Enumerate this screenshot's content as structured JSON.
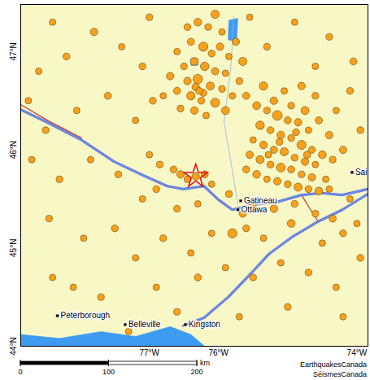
{
  "chart_data": {
    "type": "map",
    "xlim": [
      -78.86,
      -73.84
    ],
    "ylim": [
      44.0,
      47.48
    ],
    "xticks": [
      {
        "value": -77,
        "label": "77°W"
      },
      {
        "value": -76,
        "label": "76°W"
      },
      {
        "value": -74,
        "label": "74°W"
      }
    ],
    "yticks": [
      {
        "value": 44,
        "label": "44°N"
      },
      {
        "value": 45,
        "label": "45°N"
      },
      {
        "value": 46,
        "label": "46°N"
      },
      {
        "value": 47,
        "label": "47°N"
      }
    ],
    "grid": true,
    "color": "#f9a11b",
    "earthquakes": [
      {
        "lon": -76.3,
        "lat": 47.3,
        "magnitude": 2.1
      },
      {
        "lon": -76.15,
        "lat": 47.25,
        "magnitude": 1.6
      },
      {
        "lon": -76.05,
        "lat": 47.38,
        "magnitude": 2.4
      },
      {
        "lon": -75.95,
        "lat": 47.2,
        "magnitude": 1.5
      },
      {
        "lon": -76.4,
        "lat": 47.1,
        "magnitude": 1.8
      },
      {
        "lon": -76.22,
        "lat": 47.05,
        "magnitude": 3.0
      },
      {
        "lon": -76.1,
        "lat": 46.98,
        "magnitude": 1.7
      },
      {
        "lon": -75.98,
        "lat": 47.05,
        "magnitude": 2.0
      },
      {
        "lon": -75.85,
        "lat": 46.95,
        "magnitude": 1.5
      },
      {
        "lon": -76.35,
        "lat": 46.9,
        "magnitude": 2.2
      },
      {
        "lon": -76.5,
        "lat": 46.85,
        "magnitude": 1.6
      },
      {
        "lon": -76.2,
        "lat": 46.85,
        "magnitude": 2.6
      },
      {
        "lon": -76.05,
        "lat": 46.8,
        "magnitude": 1.9
      },
      {
        "lon": -75.9,
        "lat": 46.78,
        "magnitude": 1.5
      },
      {
        "lon": -76.45,
        "lat": 46.7,
        "magnitude": 2.0
      },
      {
        "lon": -76.3,
        "lat": 46.72,
        "magnitude": 3.2
      },
      {
        "lon": -76.12,
        "lat": 46.65,
        "magnitude": 2.3
      },
      {
        "lon": -75.95,
        "lat": 46.62,
        "magnitude": 1.6
      },
      {
        "lon": -76.6,
        "lat": 46.6,
        "magnitude": 1.8
      },
      {
        "lon": -76.4,
        "lat": 46.55,
        "magnitude": 2.5
      },
      {
        "lon": -76.25,
        "lat": 46.5,
        "magnitude": 1.7
      },
      {
        "lon": -76.05,
        "lat": 46.48,
        "magnitude": 2.8
      },
      {
        "lon": -75.8,
        "lat": 46.55,
        "magnitude": 1.5
      },
      {
        "lon": -76.55,
        "lat": 46.42,
        "magnitude": 1.6
      },
      {
        "lon": -76.35,
        "lat": 46.4,
        "magnitude": 2.0
      },
      {
        "lon": -76.18,
        "lat": 46.35,
        "magnitude": 1.5
      },
      {
        "lon": -75.9,
        "lat": 46.4,
        "magnitude": 2.2
      },
      {
        "lon": -75.7,
        "lat": 46.7,
        "magnitude": 1.6
      },
      {
        "lon": -75.75,
        "lat": 47.1,
        "magnitude": 1.9
      },
      {
        "lon": -76.6,
        "lat": 47.0,
        "magnitude": 1.5
      },
      {
        "lon": -76.7,
        "lat": 46.75,
        "magnitude": 2.0
      },
      {
        "lon": -76.45,
        "lat": 47.25,
        "magnitude": 1.7
      },
      {
        "lon": -75.65,
        "lat": 46.9,
        "magnitude": 2.4
      },
      {
        "lon": -76.8,
        "lat": 46.55,
        "magnitude": 1.5
      },
      {
        "lon": -76.28,
        "lat": 46.6,
        "magnitude": 1.6
      },
      {
        "lon": -76.33,
        "lat": 46.64,
        "magnitude": 2.0
      },
      {
        "lon": -76.22,
        "lat": 46.58,
        "magnitude": 1.8
      },
      {
        "lon": -75.45,
        "lat": 46.45,
        "magnitude": 2.2
      },
      {
        "lon": -75.3,
        "lat": 46.4,
        "magnitude": 1.6
      },
      {
        "lon": -75.15,
        "lat": 46.35,
        "magnitude": 3.4
      },
      {
        "lon": -75.0,
        "lat": 46.3,
        "magnitude": 1.8
      },
      {
        "lon": -74.85,
        "lat": 46.28,
        "magnitude": 2.0
      },
      {
        "lon": -74.7,
        "lat": 46.2,
        "magnitude": 1.5
      },
      {
        "lon": -75.4,
        "lat": 46.25,
        "magnitude": 2.6
      },
      {
        "lon": -75.25,
        "lat": 46.2,
        "magnitude": 1.7
      },
      {
        "lon": -75.1,
        "lat": 46.15,
        "magnitude": 2.1
      },
      {
        "lon": -74.95,
        "lat": 46.12,
        "magnitude": 1.6
      },
      {
        "lon": -74.8,
        "lat": 46.05,
        "magnitude": 2.9
      },
      {
        "lon": -74.65,
        "lat": 46.0,
        "magnitude": 1.7
      },
      {
        "lon": -74.5,
        "lat": 45.95,
        "magnitude": 2.2
      },
      {
        "lon": -75.5,
        "lat": 46.1,
        "magnitude": 1.5
      },
      {
        "lon": -75.35,
        "lat": 46.05,
        "magnitude": 2.0
      },
      {
        "lon": -75.2,
        "lat": 46.0,
        "magnitude": 1.8
      },
      {
        "lon": -75.05,
        "lat": 45.98,
        "magnitude": 2.4
      },
      {
        "lon": -74.9,
        "lat": 45.92,
        "magnitude": 1.6
      },
      {
        "lon": -74.75,
        "lat": 45.88,
        "magnitude": 2.0
      },
      {
        "lon": -74.6,
        "lat": 45.85,
        "magnitude": 1.5
      },
      {
        "lon": -75.55,
        "lat": 45.95,
        "magnitude": 1.9
      },
      {
        "lon": -75.4,
        "lat": 45.9,
        "magnitude": 2.3
      },
      {
        "lon": -75.25,
        "lat": 45.85,
        "magnitude": 1.6
      },
      {
        "lon": -75.1,
        "lat": 45.82,
        "magnitude": 2.7
      },
      {
        "lon": -74.95,
        "lat": 45.8,
        "magnitude": 1.8
      },
      {
        "lon": -74.8,
        "lat": 45.75,
        "magnitude": 1.6
      },
      {
        "lon": -74.65,
        "lat": 45.72,
        "magnitude": 2.0
      },
      {
        "lon": -74.45,
        "lat": 45.7,
        "magnitude": 1.5
      },
      {
        "lon": -75.6,
        "lat": 45.8,
        "magnitude": 1.7
      },
      {
        "lon": -75.45,
        "lat": 45.75,
        "magnitude": 2.1
      },
      {
        "lon": -75.3,
        "lat": 45.7,
        "magnitude": 1.5
      },
      {
        "lon": -75.15,
        "lat": 45.68,
        "magnitude": 2.0
      },
      {
        "lon": -75.0,
        "lat": 45.65,
        "magnitude": 1.6
      },
      {
        "lon": -74.85,
        "lat": 45.62,
        "magnitude": 2.4
      },
      {
        "lon": -74.7,
        "lat": 45.6,
        "magnitude": 1.7
      },
      {
        "lon": -74.55,
        "lat": 45.58,
        "magnitude": 2.2
      },
      {
        "lon": -74.4,
        "lat": 45.6,
        "magnitude": 1.5
      },
      {
        "lon": -75.2,
        "lat": 46.5,
        "magnitude": 2.0
      },
      {
        "lon": -74.95,
        "lat": 46.45,
        "magnitude": 1.6
      },
      {
        "lon": -74.75,
        "lat": 46.4,
        "magnitude": 2.3
      },
      {
        "lon": -74.55,
        "lat": 46.3,
        "magnitude": 1.8
      },
      {
        "lon": -74.4,
        "lat": 46.15,
        "magnitude": 2.0
      },
      {
        "lon": -74.35,
        "lat": 45.9,
        "magnitude": 1.6
      },
      {
        "lon": -75.6,
        "lat": 46.55,
        "magnitude": 1.8
      },
      {
        "lon": -75.05,
        "lat": 46.6,
        "magnitude": 1.5
      },
      {
        "lon": -74.8,
        "lat": 46.65,
        "magnitude": 2.0
      },
      {
        "lon": -75.35,
        "lat": 46.65,
        "magnitude": 2.5
      },
      {
        "lon": -74.6,
        "lat": 46.55,
        "magnitude": 1.6
      },
      {
        "lon": -74.2,
        "lat": 46.0,
        "magnitude": 1.9
      },
      {
        "lon": -74.3,
        "lat": 46.4,
        "magnitude": 1.5
      },
      {
        "lon": -75.12,
        "lat": 46.08,
        "magnitude": 1.6
      },
      {
        "lon": -74.88,
        "lat": 46.18,
        "magnitude": 1.7
      },
      {
        "lon": -75.28,
        "lat": 45.95,
        "magnitude": 1.5
      },
      {
        "lon": -74.72,
        "lat": 45.95,
        "magnitude": 1.8
      },
      {
        "lon": -76.55,
        "lat": 45.75,
        "magnitude": 2.0
      },
      {
        "lon": -76.45,
        "lat": 45.7,
        "magnitude": 1.6
      },
      {
        "lon": -76.2,
        "lat": 45.75,
        "magnitude": 1.8
      },
      {
        "lon": -76.1,
        "lat": 45.65,
        "magnitude": 1.5
      },
      {
        "lon": -76.65,
        "lat": 45.8,
        "magnitude": 1.7
      },
      {
        "lon": -76.85,
        "lat": 45.85,
        "magnitude": 1.6
      },
      {
        "lon": -77.0,
        "lat": 45.95,
        "magnitude": 1.5
      },
      {
        "lon": -75.85,
        "lat": 45.55,
        "magnitude": 1.6
      },
      {
        "lon": -75.65,
        "lat": 45.35,
        "magnitude": 1.8
      },
      {
        "lon": -75.5,
        "lat": 45.45,
        "magnitude": 1.5
      },
      {
        "lon": -75.2,
        "lat": 45.4,
        "magnitude": 2.0
      },
      {
        "lon": -74.9,
        "lat": 45.45,
        "magnitude": 1.6
      },
      {
        "lon": -75.8,
        "lat": 45.15,
        "magnitude": 3.0
      },
      {
        "lon": -75.6,
        "lat": 45.2,
        "magnitude": 1.7
      },
      {
        "lon": -75.35,
        "lat": 45.1,
        "magnitude": 1.5
      },
      {
        "lon": -74.95,
        "lat": 45.25,
        "magnitude": 2.2
      },
      {
        "lon": -74.6,
        "lat": 45.35,
        "magnitude": 1.6
      },
      {
        "lon": -74.35,
        "lat": 45.3,
        "magnitude": 1.8
      },
      {
        "lon": -74.1,
        "lat": 45.5,
        "magnitude": 1.5
      },
      {
        "lon": -74.2,
        "lat": 45.15,
        "magnitude": 1.7
      },
      {
        "lon": -74.5,
        "lat": 45.05,
        "magnitude": 1.5
      },
      {
        "lon": -76.3,
        "lat": 45.45,
        "magnitude": 1.5
      },
      {
        "lon": -76.6,
        "lat": 45.4,
        "magnitude": 1.6
      },
      {
        "lon": -76.9,
        "lat": 45.6,
        "magnitude": 1.7
      },
      {
        "lon": -76.1,
        "lat": 45.15,
        "magnitude": 1.5
      },
      {
        "lon": -78.6,
        "lat": 46.8,
        "magnitude": 1.5
      },
      {
        "lon": -78.2,
        "lat": 46.95,
        "magnitude": 1.7
      },
      {
        "lon": -77.8,
        "lat": 47.2,
        "magnitude": 2.0
      },
      {
        "lon": -77.4,
        "lat": 47.05,
        "magnitude": 1.5
      },
      {
        "lon": -77.1,
        "lat": 46.85,
        "magnitude": 1.6
      },
      {
        "lon": -78.5,
        "lat": 46.2,
        "magnitude": 1.6
      },
      {
        "lon": -78.05,
        "lat": 46.4,
        "magnitude": 1.5
      },
      {
        "lon": -77.6,
        "lat": 46.55,
        "magnitude": 1.8
      },
      {
        "lon": -77.2,
        "lat": 46.3,
        "magnitude": 1.5
      },
      {
        "lon": -76.95,
        "lat": 46.5,
        "magnitude": 1.7
      },
      {
        "lon": -78.7,
        "lat": 45.9,
        "magnitude": 1.5
      },
      {
        "lon": -78.3,
        "lat": 45.7,
        "magnitude": 1.6
      },
      {
        "lon": -77.85,
        "lat": 45.9,
        "magnitude": 1.5
      },
      {
        "lon": -77.45,
        "lat": 45.75,
        "magnitude": 1.6
      },
      {
        "lon": -77.1,
        "lat": 45.5,
        "magnitude": 1.5
      },
      {
        "lon": -78.45,
        "lat": 45.3,
        "magnitude": 1.6
      },
      {
        "lon": -77.95,
        "lat": 45.1,
        "magnitude": 1.5
      },
      {
        "lon": -77.5,
        "lat": 45.2,
        "magnitude": 1.7
      },
      {
        "lon": -77.2,
        "lat": 44.9,
        "magnitude": 1.5
      },
      {
        "lon": -76.8,
        "lat": 45.1,
        "magnitude": 1.6
      },
      {
        "lon": -76.4,
        "lat": 44.95,
        "magnitude": 1.5
      },
      {
        "lon": -78.1,
        "lat": 44.6,
        "magnitude": 1.5
      },
      {
        "lon": -77.7,
        "lat": 44.5,
        "magnitude": 1.6
      },
      {
        "lon": -76.9,
        "lat": 44.6,
        "magnitude": 1.5
      },
      {
        "lon": -76.3,
        "lat": 44.7,
        "magnitude": 1.7
      },
      {
        "lon": -75.9,
        "lat": 44.8,
        "magnitude": 1.5
      },
      {
        "lon": -75.5,
        "lat": 44.7,
        "magnitude": 1.6
      },
      {
        "lon": -75.1,
        "lat": 44.85,
        "magnitude": 1.5
      },
      {
        "lon": -74.7,
        "lat": 44.75,
        "magnitude": 1.6
      },
      {
        "lon": -74.3,
        "lat": 44.6,
        "magnitude": 1.5
      },
      {
        "lon": -73.95,
        "lat": 44.9,
        "magnitude": 1.7
      },
      {
        "lon": -74.2,
        "lat": 44.3,
        "magnitude": 1.5
      },
      {
        "lon": -75.0,
        "lat": 44.4,
        "magnitude": 1.6
      },
      {
        "lon": -75.7,
        "lat": 44.3,
        "magnitude": 1.5
      },
      {
        "lon": -76.6,
        "lat": 44.35,
        "magnitude": 1.6
      },
      {
        "lon": -77.3,
        "lat": 44.15,
        "magnitude": 1.5
      },
      {
        "lon": -78.4,
        "lat": 44.7,
        "magnitude": 1.5
      },
      {
        "lon": -74.05,
        "lat": 46.9,
        "magnitude": 1.8
      },
      {
        "lon": -74.4,
        "lat": 47.15,
        "magnitude": 1.6
      },
      {
        "lon": -74.9,
        "lat": 47.3,
        "magnitude": 1.5
      },
      {
        "lon": -75.3,
        "lat": 47.05,
        "magnitude": 1.7
      },
      {
        "lon": -74.6,
        "lat": 46.85,
        "magnitude": 1.5
      },
      {
        "lon": -74.1,
        "lat": 46.6,
        "magnitude": 1.6
      },
      {
        "lon": -75.55,
        "lat": 47.35,
        "magnitude": 1.5
      },
      {
        "lon": -77.0,
        "lat": 47.35,
        "magnitude": 1.6
      },
      {
        "lon": -78.4,
        "lat": 47.3,
        "magnitude": 1.5
      },
      {
        "lon": -78.75,
        "lat": 46.5,
        "magnitude": 1.5
      },
      {
        "lon": -73.95,
        "lat": 46.2,
        "magnitude": 1.6
      },
      {
        "lon": -74.0,
        "lat": 45.25,
        "magnitude": 1.5
      }
    ],
    "epicenter": {
      "lon": -76.33,
      "lat": 45.73,
      "magnitude": 2.0,
      "color": "#e8131b",
      "marker": "star"
    },
    "cities": [
      {
        "name": "Peterborough",
        "lon": -78.33,
        "lat": 44.31
      },
      {
        "name": "Belleville",
        "lon": -77.35,
        "lat": 44.22
      },
      {
        "name": "Kingston",
        "lon": -76.48,
        "lat": 44.22
      },
      {
        "name": "Ottawa",
        "lon": -75.72,
        "lat": 45.39
      },
      {
        "name": "Gatineau",
        "lon": -75.68,
        "lat": 45.48
      },
      {
        "name": "Sai",
        "lon": -74.07,
        "lat": 45.77
      }
    ],
    "major_rivers": [
      [
        [
          -78.86,
          46.41
        ],
        [
          -78.45,
          46.27
        ],
        [
          -77.98,
          46.1
        ],
        [
          -77.51,
          45.88
        ],
        [
          -77.09,
          45.74
        ],
        [
          -76.74,
          45.63
        ],
        [
          -76.51,
          45.6
        ],
        [
          -76.21,
          45.63
        ],
        [
          -76.0,
          45.49
        ],
        [
          -75.8,
          45.39
        ],
        [
          -75.51,
          45.44
        ],
        [
          -75.15,
          45.47
        ],
        [
          -74.8,
          45.54
        ],
        [
          -74.51,
          45.56
        ],
        [
          -74.21,
          45.54
        ],
        [
          -73.84,
          45.6
        ]
      ],
      [
        [
          -76.51,
          44.21
        ],
        [
          -76.21,
          44.29
        ],
        [
          -75.86,
          44.5
        ],
        [
          -75.56,
          44.72
        ],
        [
          -75.27,
          44.94
        ],
        [
          -74.92,
          45.12
        ],
        [
          -74.56,
          45.27
        ],
        [
          -74.21,
          45.39
        ],
        [
          -73.84,
          45.55
        ]
      ]
    ],
    "minor_rivers": [
      [
        [
          -75.78,
          47.36
        ],
        [
          -75.82,
          46.86
        ],
        [
          -75.92,
          46.28
        ],
        [
          -75.82,
          45.87
        ],
        [
          -75.72,
          45.45
        ]
      ]
    ],
    "lakes": [
      [
        [
          -75.85,
          47.32
        ],
        [
          -75.72,
          47.34
        ],
        [
          -75.74,
          47.1
        ],
        [
          -75.86,
          47.12
        ]
      ],
      [
        [
          -76.4,
          46.93
        ],
        [
          -76.3,
          46.93
        ],
        [
          -76.3,
          46.86
        ],
        [
          -76.4,
          46.86
        ]
      ],
      [
        [
          -78.86,
          44.0
        ],
        [
          -78.86,
          44.12
        ],
        [
          -78.3,
          44.08
        ],
        [
          -77.7,
          44.15
        ],
        [
          -77.2,
          44.1
        ],
        [
          -76.7,
          44.2
        ],
        [
          -76.4,
          44.12
        ],
        [
          -76.2,
          44.0
        ]
      ]
    ],
    "boundaries": [
      [
        [
          -78.86,
          46.46
        ],
        [
          -78.45,
          46.29
        ],
        [
          -77.98,
          46.12
        ]
      ],
      [
        [
          -74.8,
          45.54
        ],
        [
          -74.68,
          45.4
        ],
        [
          -74.56,
          45.27
        ]
      ]
    ],
    "scale_bar": {
      "ticks": [
        0,
        100,
        200
      ],
      "unit": "km"
    },
    "credits": [
      "EarthquakesCanada",
      "SéismesCanada"
    ]
  }
}
